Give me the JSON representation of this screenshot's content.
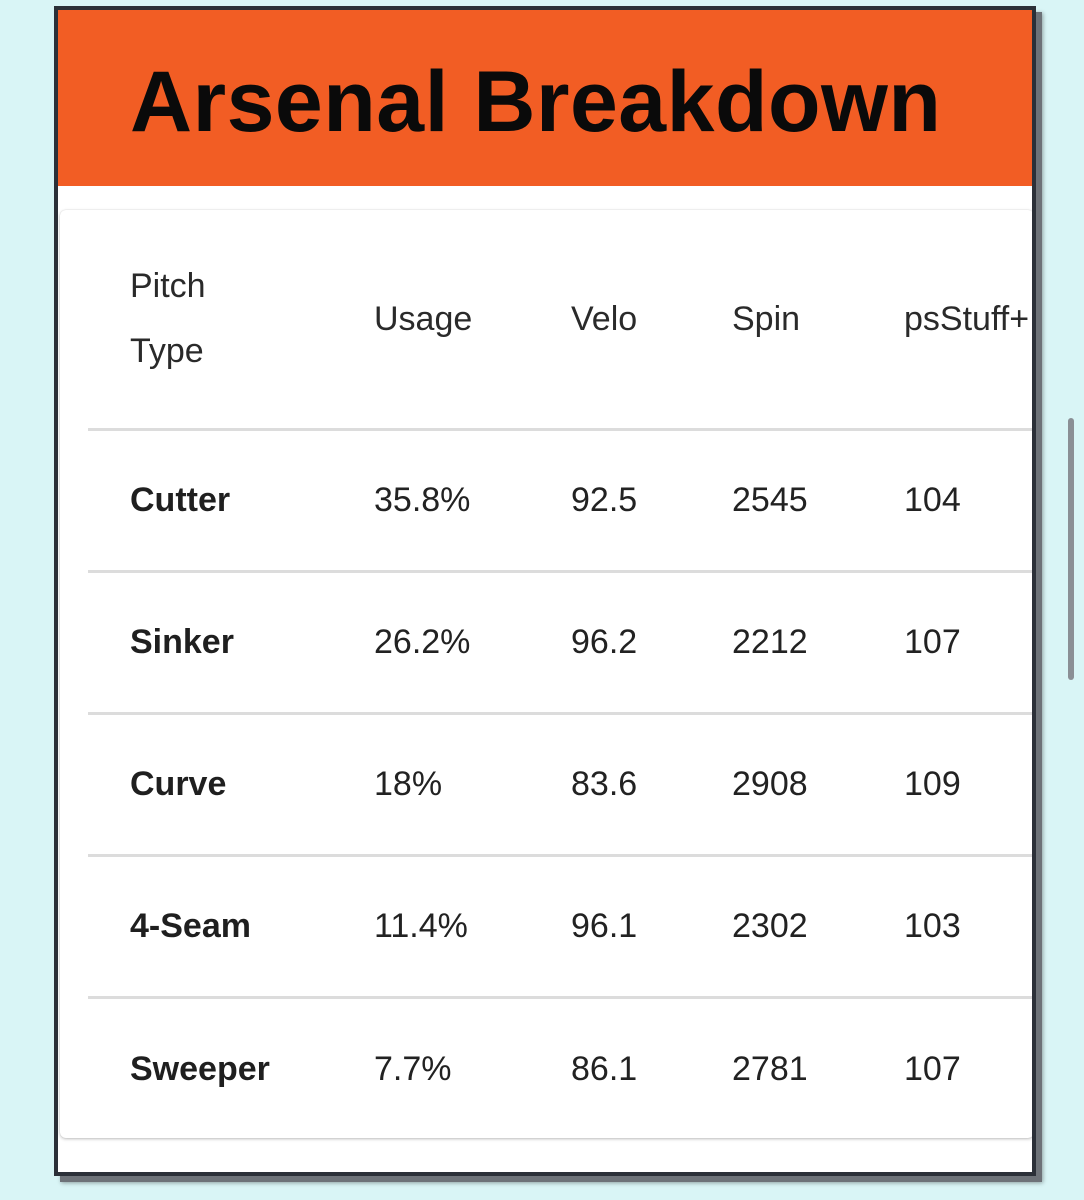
{
  "banner": {
    "title": "Arsenal Breakdown",
    "background_color": "#f25d24"
  },
  "table": {
    "headers": {
      "pitch_type_line1": "Pitch",
      "pitch_type_line2": "Type",
      "usage": "Usage",
      "velo": "Velo",
      "spin": "Spin",
      "stuff": "psStuff+"
    },
    "rows": [
      {
        "pitch": "Cutter",
        "usage": "35.8%",
        "velo": "92.5",
        "spin": "2545",
        "stuff": "104"
      },
      {
        "pitch": "Sinker",
        "usage": "26.2%",
        "velo": "96.2",
        "spin": "2212",
        "stuff": "107"
      },
      {
        "pitch": "Curve",
        "usage": "18%",
        "velo": "83.6",
        "spin": "2908",
        "stuff": "109"
      },
      {
        "pitch": "4-Seam",
        "usage": "11.4%",
        "velo": "96.1",
        "spin": "2302",
        "stuff": "103"
      },
      {
        "pitch": "Sweeper",
        "usage": "7.7%",
        "velo": "86.1",
        "spin": "2781",
        "stuff": "107"
      }
    ]
  }
}
